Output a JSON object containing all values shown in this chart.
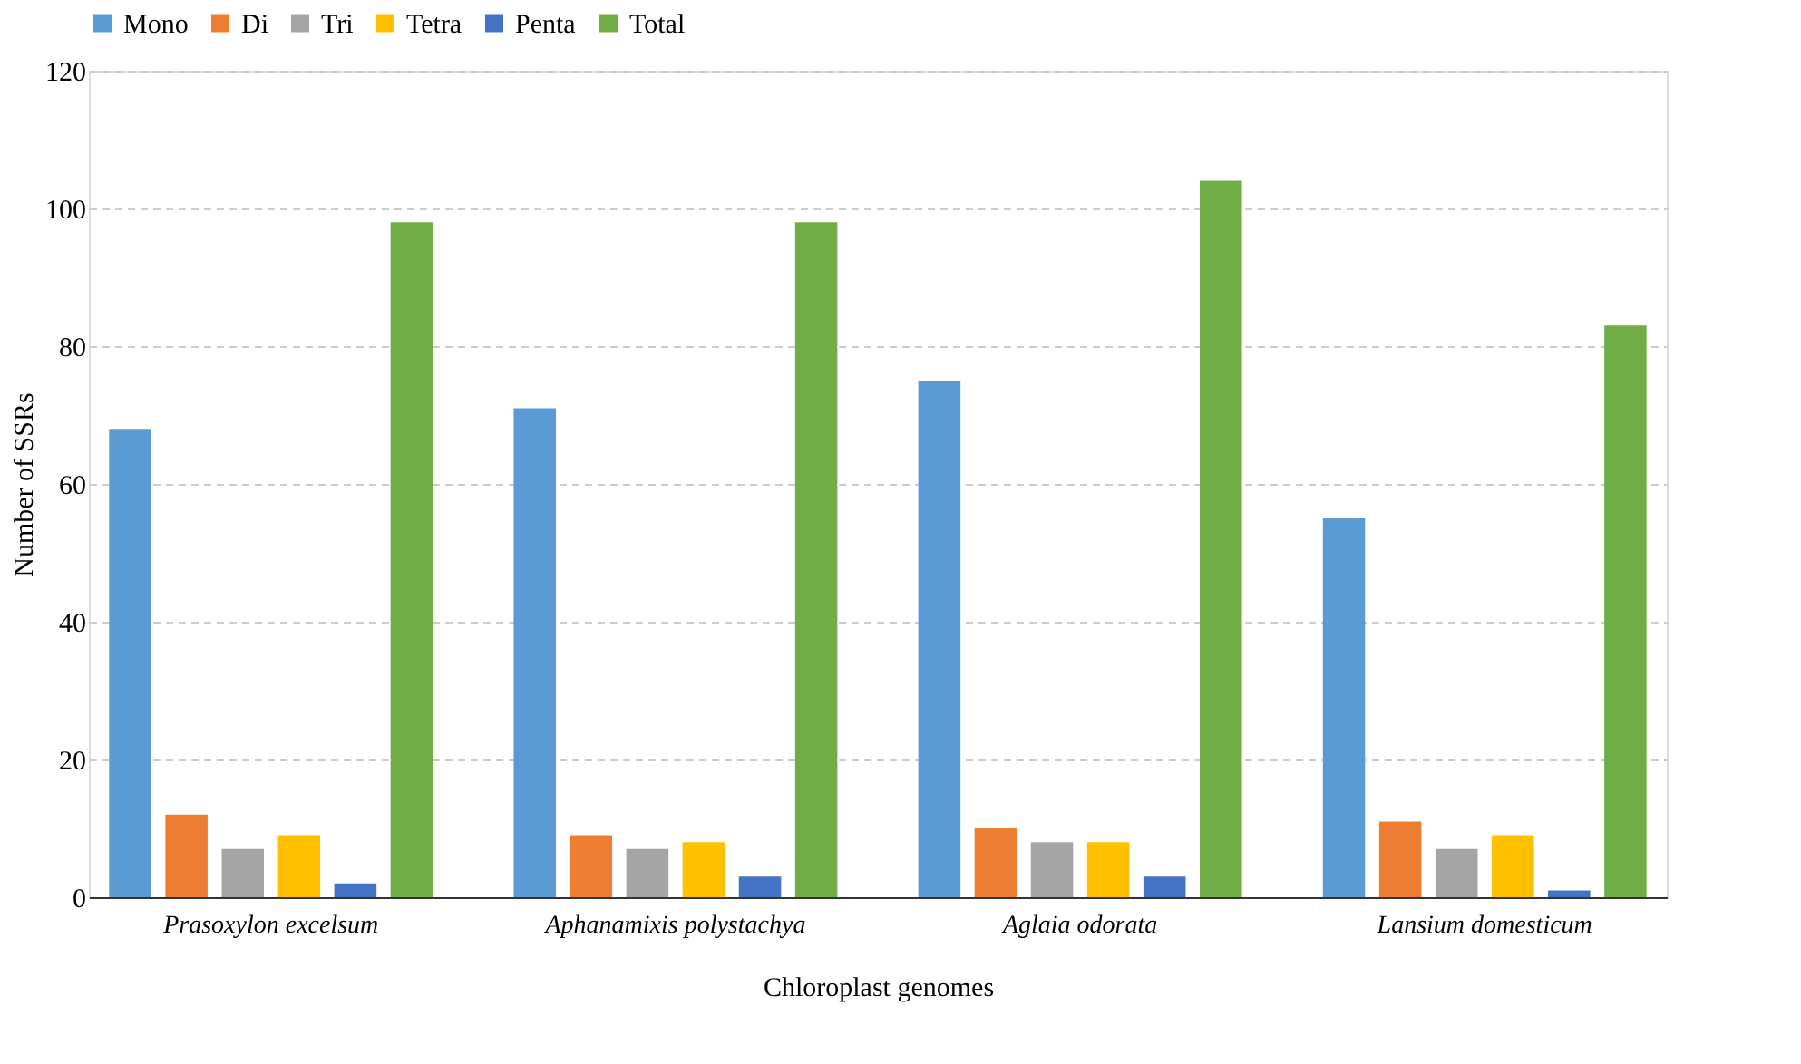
{
  "chart_data": {
    "type": "bar",
    "xlabel": "Chloroplast genomes",
    "ylabel": "Number of SSRs",
    "categories": [
      "Prasoxylon excelsum",
      "Aphanamixis polystachya",
      "Aglaia odorata",
      "Lansium domesticum"
    ],
    "series": [
      {
        "name": "Mono",
        "color": "#5b9bd5",
        "values": [
          68,
          71,
          75,
          55
        ]
      },
      {
        "name": "Di",
        "color": "#ed7d31",
        "values": [
          12,
          9,
          10,
          11
        ]
      },
      {
        "name": "Tri",
        "color": "#a5a5a5",
        "values": [
          7,
          7,
          8,
          7
        ]
      },
      {
        "name": "Tetra",
        "color": "#ffc000",
        "values": [
          9,
          8,
          8,
          9
        ]
      },
      {
        "name": "Penta",
        "color": "#4472c4",
        "values": [
          2,
          3,
          3,
          1
        ]
      },
      {
        "name": "Total",
        "color": "#70ad47",
        "values": [
          98,
          98,
          104,
          83
        ]
      }
    ],
    "ylim": [
      0,
      120
    ],
    "yticks": [
      0,
      20,
      40,
      60,
      80,
      100,
      120
    ],
    "grid": "y",
    "legend": "top"
  }
}
